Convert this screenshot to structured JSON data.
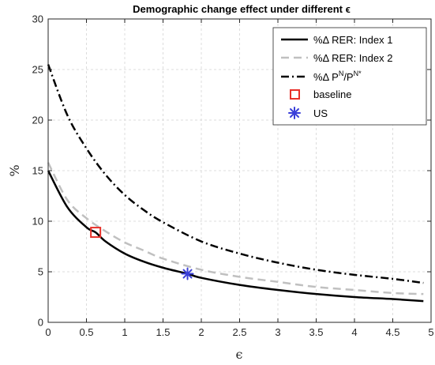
{
  "chart_data": {
    "type": "line",
    "title": "Demographic change effect under different ϵ",
    "xlabel": "ϵ",
    "ylabel": "%",
    "xlim": [
      0,
      5
    ],
    "ylim": [
      0,
      30
    ],
    "x_ticks": [
      "0",
      "0.5",
      "1",
      "1.5",
      "2",
      "2.5",
      "3",
      "3.5",
      "4",
      "4.5",
      "5"
    ],
    "y_ticks": [
      "0",
      "5",
      "10",
      "15",
      "20",
      "25",
      "30"
    ],
    "grid": true,
    "legend_position": "top-right",
    "series": [
      {
        "name": "%Δ RER: Index 1",
        "color": "#000000",
        "style": "solid",
        "x": [
          0.0,
          0.25,
          0.5,
          0.62,
          0.75,
          1.0,
          1.25,
          1.5,
          1.82,
          2.0,
          2.5,
          3.0,
          3.5,
          4.0,
          4.5,
          4.9
        ],
        "y": [
          15.0,
          11.4,
          9.4,
          8.9,
          8.0,
          6.8,
          6.0,
          5.4,
          4.8,
          4.4,
          3.7,
          3.2,
          2.8,
          2.5,
          2.3,
          2.1
        ]
      },
      {
        "name": "%Δ RER: Index 2",
        "color": "#c0c0c0",
        "style": "dashed",
        "x": [
          0.0,
          0.25,
          0.5,
          0.75,
          1.0,
          1.25,
          1.5,
          2.0,
          2.5,
          3.0,
          3.5,
          4.0,
          4.5,
          4.9
        ],
        "y": [
          15.8,
          12.1,
          10.3,
          9.0,
          7.9,
          7.1,
          6.3,
          5.2,
          4.5,
          4.0,
          3.5,
          3.2,
          2.9,
          2.8
        ]
      },
      {
        "name": "%Δ P^N/P^N*",
        "label_main": "%Δ P",
        "label_sup1": "N",
        "label_mid": "/P",
        "label_sup2": "N*",
        "color": "#000000",
        "style": "dashdot",
        "x": [
          0.0,
          0.25,
          0.5,
          0.75,
          1.0,
          1.25,
          1.5,
          2.0,
          2.5,
          3.0,
          3.5,
          4.0,
          4.5,
          4.9
        ],
        "y": [
          25.5,
          20.5,
          17.2,
          14.6,
          12.6,
          11.1,
          9.9,
          8.0,
          6.8,
          5.9,
          5.2,
          4.7,
          4.3,
          3.9
        ]
      }
    ],
    "markers": [
      {
        "name": "baseline",
        "shape": "square",
        "color": "#e8312a",
        "x": 0.62,
        "y": 8.9
      },
      {
        "name": "US",
        "shape": "asterisk",
        "color": "#3a3fd9",
        "x": 1.82,
        "y": 4.8
      }
    ]
  }
}
